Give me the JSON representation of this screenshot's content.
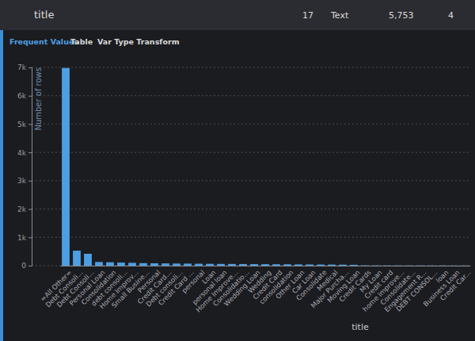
{
  "header": {
    "cells": [
      "title",
      "17",
      "Text",
      "5,753",
      "4"
    ]
  },
  "tabs": [
    "Frequent Values",
    "Table",
    "Var Type Transform"
  ],
  "chart_data": {
    "type": "bar",
    "color": "#4d9fe3",
    "grid": true,
    "x_label": "title",
    "y_label": "Number of rows",
    "categories": [
      "=All Other=",
      "Debt Consoli...",
      "Debt Consoli...",
      "Personal Loan",
      "Consolidation",
      "debt consoli...",
      "Home Improv...",
      "Small Busine...",
      "Personal",
      "Credit Card...",
      "Debt consoli...",
      "Credit Card ...",
      "personal",
      "Loan",
      "personal loan",
      "Home Improve...",
      "Consolidatio...",
      "Wedding Loan",
      "Wedding",
      "Credit Card",
      "consolidation",
      "Other Loan",
      "Car Loan",
      "Consolidate",
      "Medical",
      "Major Purcha...",
      "Moving Loan",
      "Credit Cards",
      "My Loan",
      "Credit card",
      "home improve...",
      "Consolidate...",
      "Engagement R...",
      "DEBT CONSOL...",
      "loan",
      "Business Loan",
      "Credit Car..."
    ],
    "values": [
      6980,
      530,
      420,
      130,
      120,
      110,
      100,
      90,
      85,
      80,
      75,
      72,
      68,
      65,
      62,
      60,
      58,
      55,
      52,
      50,
      48,
      45,
      42,
      40,
      38,
      35,
      30,
      10,
      9,
      8,
      8,
      7,
      7,
      6,
      6,
      5,
      5
    ],
    "ylim": [
      0,
      7000
    ],
    "yticks": [
      0,
      {
        "value": 1000,
        "label": "1k"
      },
      {
        "value": 2000,
        "label": "2k"
      },
      {
        "value": 3000,
        "label": "3k"
      },
      {
        "value": 4000,
        "label": "4k"
      },
      {
        "value": 5000,
        "label": "5k"
      },
      {
        "value": 6000,
        "label": "6k"
      },
      {
        "value": 7000,
        "label": "7k"
      }
    ]
  }
}
